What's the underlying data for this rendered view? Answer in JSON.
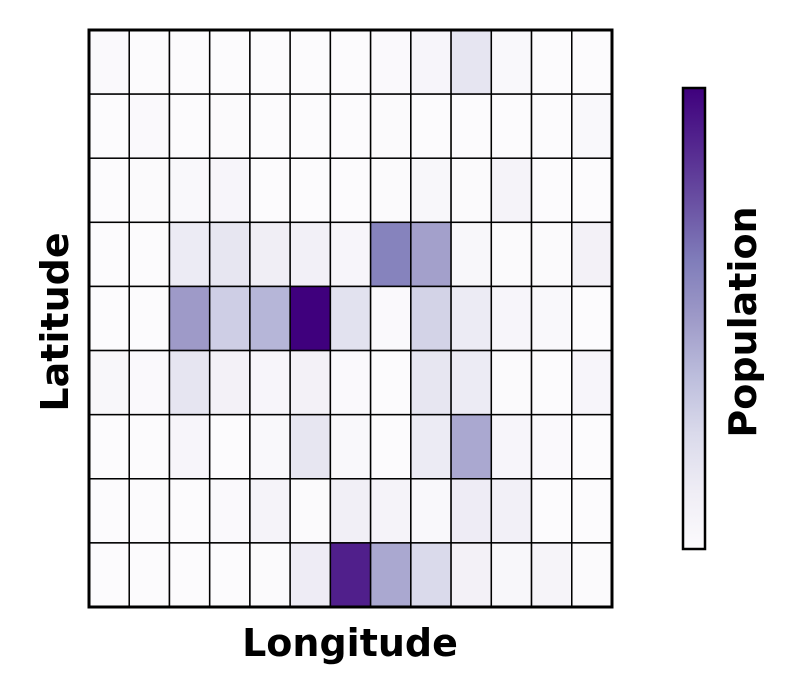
{
  "chart_data": {
    "type": "heatmap",
    "title": "",
    "xlabel": "Longitude",
    "ylabel": "Latitude",
    "colorbar_label": "Population",
    "colormap": [
      "#fcfbfd",
      "#efedf5",
      "#dadaeb",
      "#bcbddc",
      "#9e9ac8",
      "#807dba",
      "#6a51a3",
      "#54278f",
      "#3f007d"
    ],
    "value_range": [
      0,
      1
    ],
    "grid": true,
    "legend": "colorbar-right",
    "rows": 9,
    "cols": 13,
    "values": [
      [
        0.02,
        0.0,
        0.0,
        0.0,
        0.0,
        0.0,
        0.0,
        0.02,
        0.05,
        0.18,
        0.03,
        0.0,
        0.0
      ],
      [
        0.0,
        0.02,
        0.0,
        0.01,
        0.0,
        0.0,
        0.0,
        0.01,
        0.0,
        0.0,
        0.0,
        0.0,
        0.03
      ],
      [
        0.0,
        0.01,
        0.03,
        0.05,
        0.0,
        0.0,
        0.0,
        0.01,
        0.04,
        0.01,
        0.07,
        0.0,
        0.0
      ],
      [
        0.0,
        0.0,
        0.14,
        0.17,
        0.12,
        0.1,
        0.05,
        0.6,
        0.48,
        0.04,
        0.01,
        0.01,
        0.09
      ],
      [
        0.0,
        0.0,
        0.5,
        0.3,
        0.4,
        1.0,
        0.2,
        0.02,
        0.28,
        0.14,
        0.05,
        0.03,
        0.0
      ],
      [
        0.04,
        0.02,
        0.18,
        0.09,
        0.05,
        0.09,
        0.02,
        0.0,
        0.17,
        0.14,
        0.01,
        0.0,
        0.05
      ],
      [
        0.0,
        0.0,
        0.05,
        0.0,
        0.03,
        0.17,
        0.03,
        0.0,
        0.14,
        0.45,
        0.05,
        0.02,
        0.0
      ],
      [
        0.0,
        0.0,
        0.0,
        0.02,
        0.07,
        0.01,
        0.11,
        0.07,
        0.03,
        0.13,
        0.1,
        0.0,
        0.0
      ],
      [
        0.0,
        0.0,
        0.0,
        0.0,
        0.01,
        0.13,
        0.9,
        0.45,
        0.25,
        0.09,
        0.04,
        0.06,
        0.01
      ]
    ]
  }
}
